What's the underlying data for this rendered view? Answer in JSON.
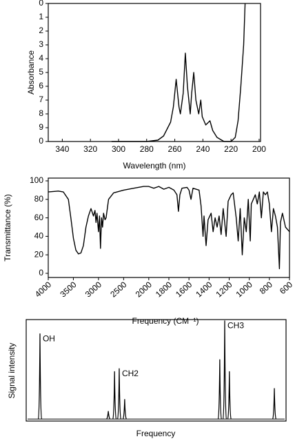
{
  "chart_data": [
    {
      "type": "line",
      "xlabel": "Wavelength (nm)",
      "ylabel": "Absorbance",
      "color": "#000000",
      "x": [
        305,
        280,
        272,
        268,
        265,
        263,
        261,
        259,
        257,
        256,
        254,
        252.5,
        251,
        249,
        248,
        246.5,
        245,
        243,
        241.5,
        240.5,
        238,
        235,
        233,
        230,
        225,
        220,
        217,
        215,
        213,
        211,
        210
      ],
      "values": [
        10,
        10,
        9.9,
        9.6,
        9.0,
        8.6,
        7.5,
        5.5,
        7.5,
        8.0,
        6.5,
        3.6,
        6.0,
        8.0,
        6.5,
        5.0,
        7.0,
        8.0,
        7.0,
        8.2,
        8.8,
        8.5,
        9.2,
        9.7,
        10,
        10,
        9.7,
        8.5,
        6,
        3,
        0
      ],
      "xlim": [
        350,
        199
      ],
      "xticks": [
        340,
        320,
        300,
        280,
        260,
        240,
        220,
        200
      ],
      "ylim": [
        10,
        0
      ],
      "yticks": [
        0,
        1,
        2,
        3,
        4,
        5,
        6,
        7,
        8,
        9,
        {
          "value": 10,
          "label": "0"
        }
      ]
    },
    {
      "type": "line",
      "xlabel": "Frequency (CM⁻¹)",
      "ylabel": "Transmittance (%)",
      "color": "#000000",
      "x": [
        4000,
        3800,
        3700,
        3600,
        3550,
        3500,
        3450,
        3400,
        3350,
        3300,
        3250,
        3200,
        3150,
        3100,
        3070,
        3050,
        3030,
        3000,
        2980,
        2960,
        2940,
        2920,
        2900,
        2870,
        2850,
        2800,
        2700,
        2500,
        2300,
        2100,
        2000,
        1950,
        1900,
        1850,
        1800,
        1750,
        1720,
        1705,
        1690,
        1670,
        1620,
        1600,
        1580,
        1560,
        1500,
        1480,
        1460,
        1450,
        1430,
        1410,
        1380,
        1360,
        1340,
        1320,
        1300,
        1280,
        1260,
        1230,
        1210,
        1180,
        1160,
        1130,
        1110,
        1090,
        1070,
        1050,
        1030,
        1010,
        990,
        980,
        960,
        940,
        920,
        900,
        880,
        860,
        840,
        820,
        800,
        780,
        760,
        740,
        720,
        700,
        690,
        670,
        640,
        600
      ],
      "values": [
        88,
        89,
        88,
        80,
        60,
        38,
        25,
        21,
        22,
        30,
        50,
        62,
        70,
        62,
        68,
        55,
        65,
        45,
        62,
        27,
        60,
        50,
        65,
        58,
        60,
        80,
        87,
        90,
        92,
        94,
        94,
        92,
        94,
        91,
        93,
        90,
        85,
        67,
        85,
        92,
        93,
        90,
        80,
        92,
        90,
        73,
        40,
        62,
        30,
        58,
        65,
        45,
        60,
        50,
        62,
        42,
        70,
        40,
        78,
        85,
        87,
        60,
        35,
        70,
        20,
        60,
        45,
        80,
        35,
        75,
        80,
        85,
        75,
        88,
        60,
        88,
        85,
        88,
        75,
        45,
        70,
        62,
        50,
        5,
        55,
        65,
        50,
        45
      ],
      "xlim": [
        4000,
        600
      ],
      "x_break": 2000,
      "x_break_factor": 2,
      "xticks": [
        4000,
        3500,
        3000,
        2500,
        2000,
        1800,
        1600,
        1400,
        1200,
        1000,
        800,
        600
      ],
      "ylim": [
        -4.5,
        103
      ],
      "yticks": [
        0,
        20,
        40,
        60,
        80,
        100
      ]
    },
    {
      "type": "stem",
      "xlabel": "Frequency",
      "ylabel": "Signal intensity",
      "color": "#000000",
      "x": [
        5.3,
        31.6,
        34.0,
        35.8,
        37.9,
        74.5,
        76.4,
        78.2,
        95.5
      ],
      "values": [
        86,
        8,
        48,
        51,
        20,
        60,
        99,
        48,
        31
      ],
      "peak_labels": [
        "OH",
        null,
        null,
        "CH2",
        null,
        null,
        "CH3",
        null,
        null
      ],
      "xlim": [
        0,
        100
      ],
      "ylim": [
        -2,
        100
      ]
    }
  ]
}
